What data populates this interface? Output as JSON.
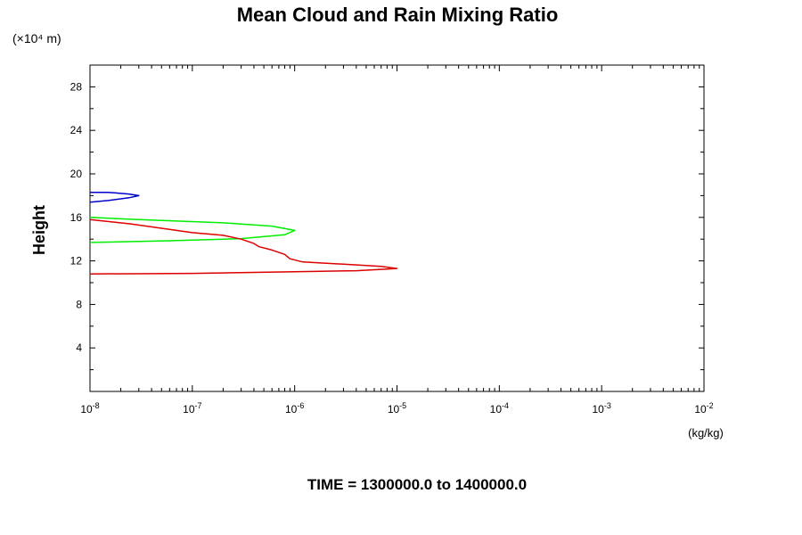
{
  "chart_data": {
    "type": "line",
    "title": "Mean Cloud and Rain Mixing Ratio",
    "ylabel": "Height",
    "y_scale_note": "(×10⁴ m)",
    "xunit": "(kg/kg)",
    "footer": "TIME = 1300000.0 to 1400000.0",
    "x_scale": "log",
    "xlim": [
      1e-08,
      0.01
    ],
    "ylim": [
      0,
      30
    ],
    "x_ticks": [
      {
        "value": 1e-08,
        "base": "10",
        "exp": "-8"
      },
      {
        "value": 1e-07,
        "base": "10",
        "exp": "-7"
      },
      {
        "value": 1e-06,
        "base": "10",
        "exp": "-6"
      },
      {
        "value": 1e-05,
        "base": "10",
        "exp": "-5"
      },
      {
        "value": 0.0001,
        "base": "10",
        "exp": "-4"
      },
      {
        "value": 0.001,
        "base": "10",
        "exp": "-3"
      },
      {
        "value": 0.01,
        "base": "10",
        "exp": "-2"
      }
    ],
    "y_ticks": [
      4,
      8,
      12,
      16,
      20,
      24,
      28
    ],
    "series": [
      {
        "color": "#0000cc",
        "points": [
          [
            1e-08,
            18.3
          ],
          [
            1.5e-08,
            18.3
          ],
          [
            2.4e-08,
            18.15
          ],
          [
            3e-08,
            18.0
          ],
          [
            2.4e-08,
            17.8
          ],
          [
            1.5e-08,
            17.55
          ],
          [
            1e-08,
            17.4
          ]
        ]
      },
      {
        "color": "#00ee00",
        "points": [
          [
            1e-08,
            16.0
          ],
          [
            3e-08,
            15.8
          ],
          [
            2e-07,
            15.5
          ],
          [
            6e-07,
            15.2
          ],
          [
            1e-06,
            14.8
          ],
          [
            8e-07,
            14.4
          ],
          [
            3e-07,
            14.05
          ],
          [
            6e-08,
            13.85
          ],
          [
            1e-08,
            13.7
          ]
        ]
      },
      {
        "color": "#dd0000",
        "points": [
          [
            1e-08,
            15.8
          ],
          [
            2.5e-08,
            15.4
          ],
          [
            5e-08,
            15.0
          ],
          [
            1e-07,
            14.6
          ],
          [
            2e-07,
            14.35
          ],
          [
            3e-07,
            14.0
          ],
          [
            4e-07,
            13.6
          ],
          [
            4.5e-07,
            13.3
          ],
          [
            6e-07,
            13.0
          ],
          [
            8e-07,
            12.6
          ],
          [
            9e-07,
            12.2
          ],
          [
            1.2e-06,
            11.9
          ],
          [
            3e-06,
            11.7
          ],
          [
            7e-06,
            11.5
          ],
          [
            1e-05,
            11.3
          ],
          [
            4e-06,
            11.1
          ],
          [
            1e-06,
            11.0
          ],
          [
            1e-07,
            10.85
          ],
          [
            1e-08,
            10.8
          ]
        ]
      }
    ]
  }
}
